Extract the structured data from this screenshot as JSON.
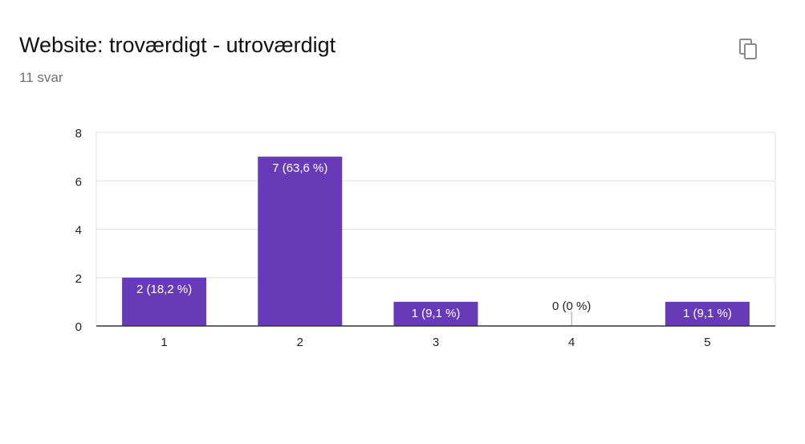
{
  "header": {
    "title": "Website: troværdigt - utroværdigt",
    "response_count": "11 svar",
    "copy_icon": "copy-icon"
  },
  "colors": {
    "bar": "#673ab7",
    "grid": "#e0e0e0",
    "axis": "#333333",
    "label_inside": "#ffffff",
    "label_outside": "#222222"
  },
  "chart_data": {
    "type": "bar",
    "categories": [
      "1",
      "2",
      "3",
      "4",
      "5"
    ],
    "values": [
      2,
      7,
      1,
      0,
      1
    ],
    "data_labels": [
      "2 (18,2 %)",
      "7 (63,6 %)",
      "1 (9,1 %)",
      "0 (0 %)",
      "1 (9,1 %)"
    ],
    "ylim": [
      0,
      8
    ],
    "yticks": [
      "0",
      "2",
      "4",
      "6",
      "8"
    ],
    "grid": true,
    "legend": "none"
  }
}
